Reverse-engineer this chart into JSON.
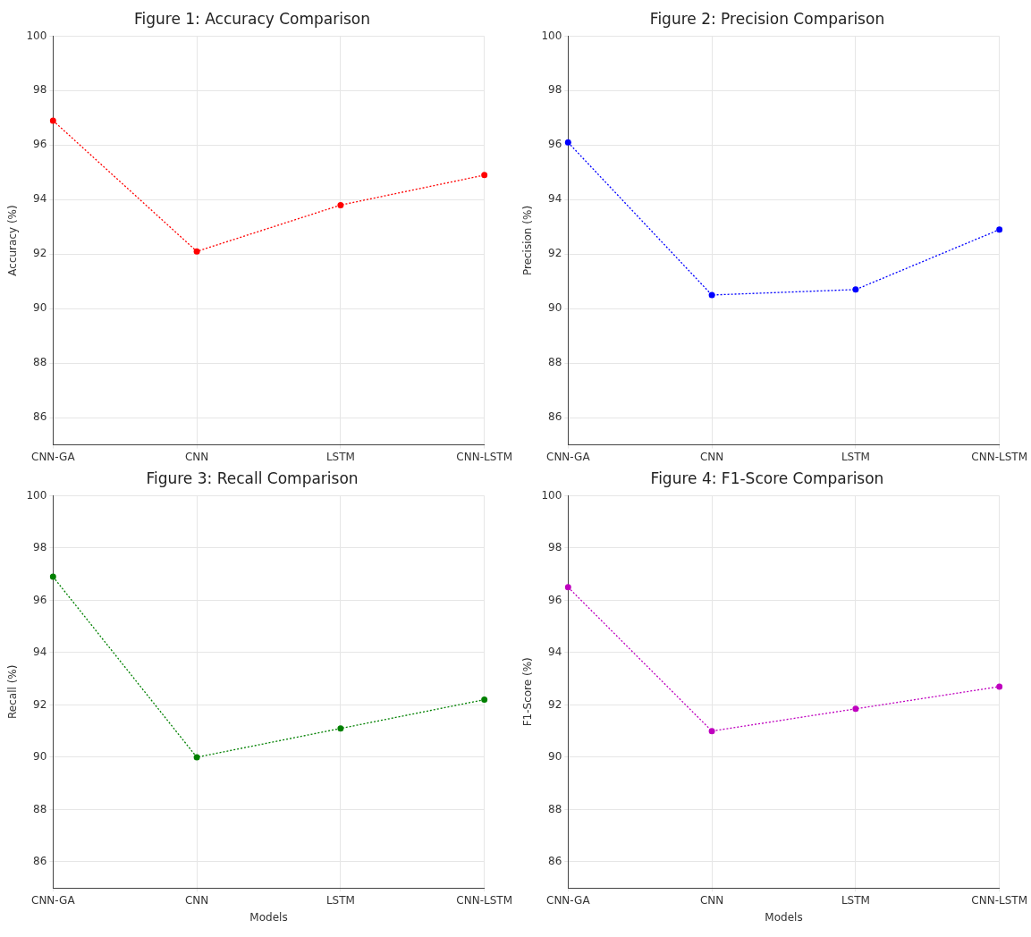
{
  "chart_data": [
    {
      "type": "line",
      "title": "Figure 1: Accuracy Comparison",
      "ylabel": "Accuracy (%)",
      "categories": [
        "CNN-GA",
        "CNN",
        "LSTM",
        "CNN-LSTM"
      ],
      "series": [
        {
          "color": "#ff0000",
          "values": [
            96.9,
            92.1,
            93.8,
            94.9
          ]
        }
      ],
      "ylim": [
        85,
        100
      ],
      "yticks": [
        86,
        88,
        90,
        92,
        94,
        96,
        98,
        100
      ],
      "grid": true,
      "marker": "circle",
      "line_style": "dotted"
    },
    {
      "type": "line",
      "title": "Figure 2: Precision Comparison",
      "ylabel": "Precision (%)",
      "categories": [
        "CNN-GA",
        "CNN",
        "LSTM",
        "CNN-LSTM"
      ],
      "series": [
        {
          "color": "#0000ff",
          "values": [
            96.1,
            90.5,
            90.7,
            92.9
          ]
        }
      ],
      "ylim": [
        85,
        100
      ],
      "yticks": [
        86,
        88,
        90,
        92,
        94,
        96,
        98,
        100
      ],
      "grid": true,
      "marker": "circle",
      "line_style": "dotted"
    },
    {
      "type": "line",
      "title": "Figure 3: Recall Comparison",
      "xlabel": "Models",
      "ylabel": "Recall (%)",
      "categories": [
        "CNN-GA",
        "CNN",
        "LSTM",
        "CNN-LSTM"
      ],
      "series": [
        {
          "color": "#008000",
          "values": [
            96.9,
            90.0,
            91.1,
            92.2
          ]
        }
      ],
      "ylim": [
        85,
        100
      ],
      "yticks": [
        86,
        88,
        90,
        92,
        94,
        96,
        98,
        100
      ],
      "grid": true,
      "marker": "circle",
      "line_style": "dotted"
    },
    {
      "type": "line",
      "title": "Figure 4: F1-Score Comparison",
      "xlabel": "Models",
      "ylabel": "F1-Score (%)",
      "categories": [
        "CNN-GA",
        "CNN",
        "LSTM",
        "CNN-LSTM"
      ],
      "series": [
        {
          "color": "#bf00bf",
          "values": [
            96.5,
            91.0,
            91.85,
            92.7
          ]
        }
      ],
      "ylim": [
        85,
        100
      ],
      "yticks": [
        86,
        88,
        90,
        92,
        94,
        96,
        98,
        100
      ],
      "grid": true,
      "marker": "circle",
      "line_style": "dotted"
    }
  ]
}
